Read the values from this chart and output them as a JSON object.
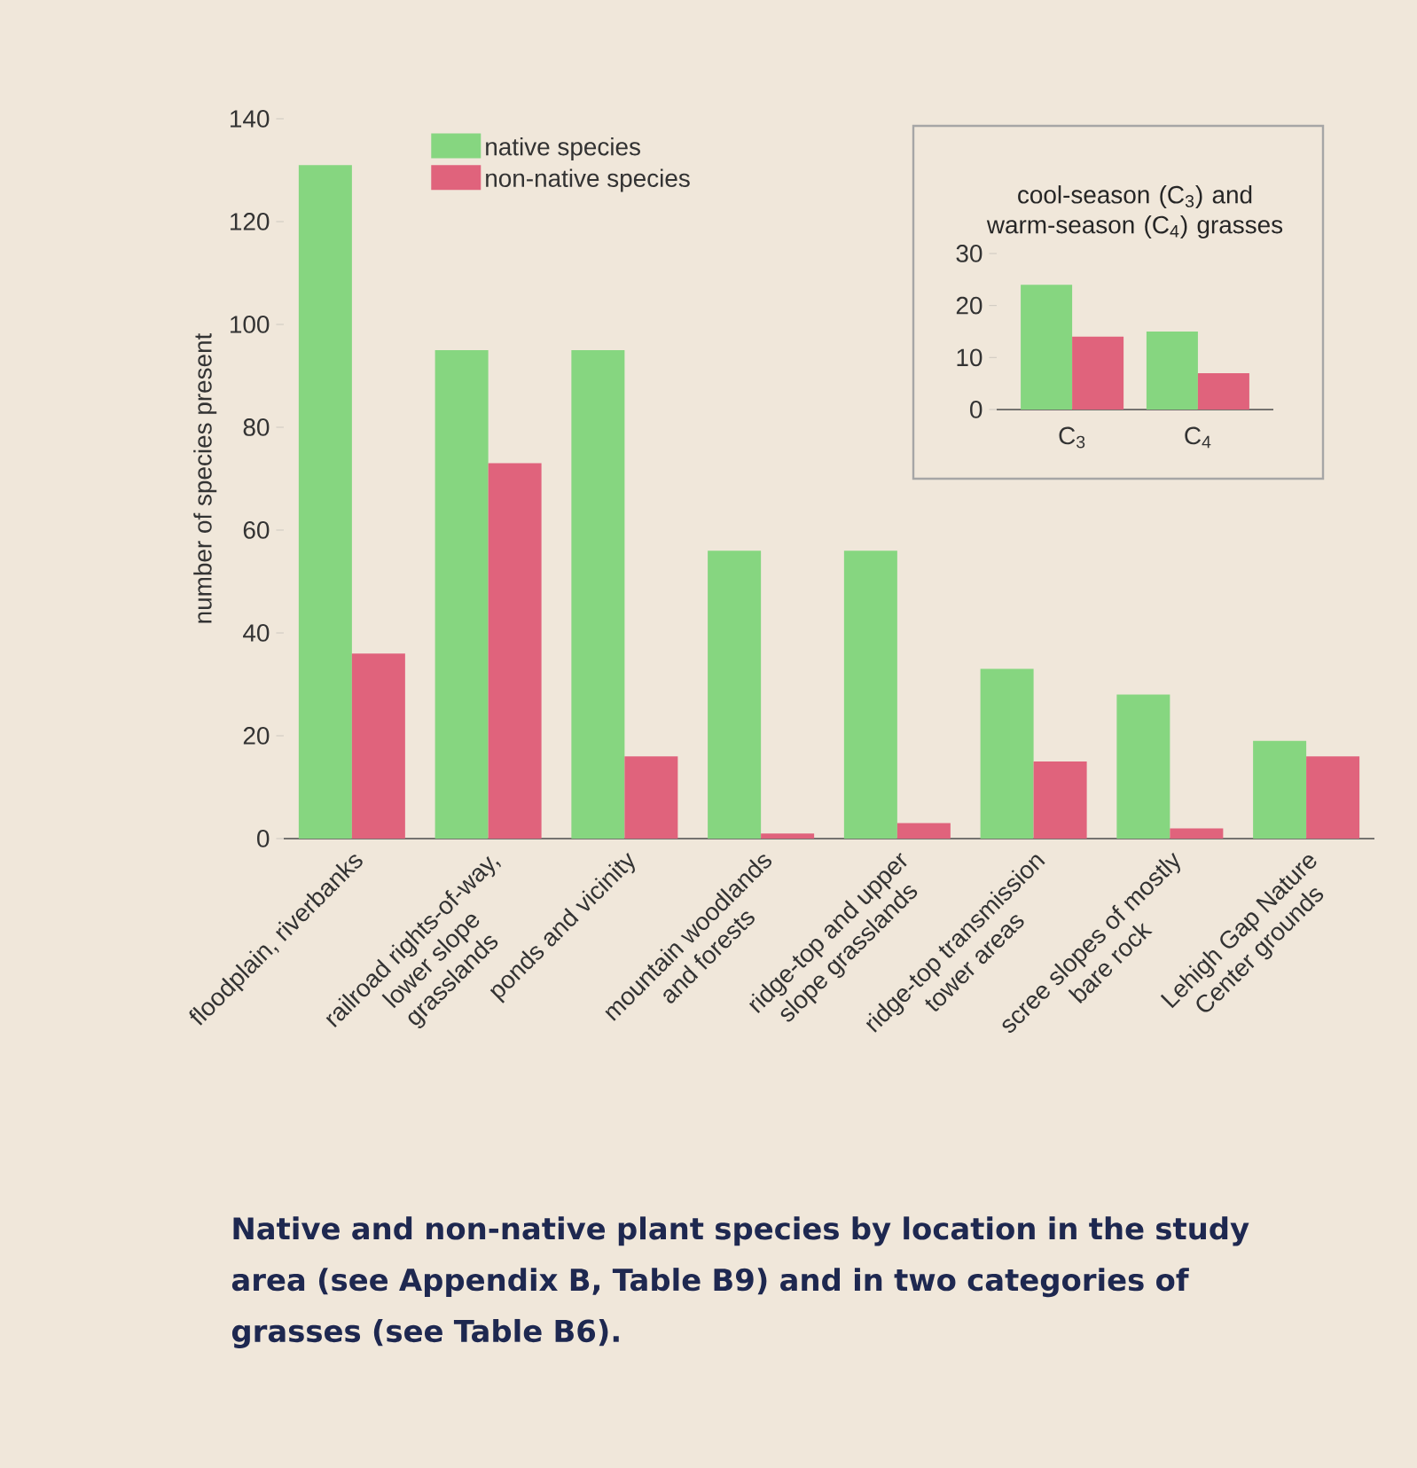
{
  "chart_data": [
    {
      "type": "bar",
      "ylabel": "number of species present",
      "categories": [
        "floodplain, riverbanks",
        "railroad rights-of-way, lower slope grasslands",
        "ponds and vicinity",
        "mountain woodlands and forests",
        "ridge-top and upper slope grasslands",
        "ridge-top transmission tower areas",
        "scree slopes of mostly bare rock",
        "Lehigh Gap Nature Center grounds"
      ],
      "series": [
        {
          "name": "native species",
          "color": "#86d680",
          "values": [
            131,
            95,
            95,
            56,
            56,
            33,
            28,
            19
          ]
        },
        {
          "name": "non-native species",
          "color": "#e0637c",
          "values": [
            36,
            73,
            16,
            1,
            3,
            15,
            2,
            16
          ]
        }
      ],
      "ylim": [
        0,
        140
      ],
      "yticks": [
        0,
        20,
        40,
        60,
        80,
        100,
        120,
        140
      ],
      "legend": "top left",
      "annotations": [
        "Native and non-native plant species by location in the study area (see Appendix B, Table B9) and in two categories of grasses (see Table B6)."
      ]
    },
    {
      "type": "bar",
      "title": "cool-season (C$_{3}$) and warm-season (C$_{4}$) grasses",
      "categories": [
        "C$_{3}$",
        "C$_{4}$"
      ],
      "series": [
        {
          "color": "#86d680",
          "values": [
            24,
            15
          ]
        },
        {
          "color": "#e0637c",
          "values": [
            14,
            7
          ]
        }
      ],
      "ylim": [
        0,
        30
      ],
      "yticks": [
        0,
        10,
        20,
        30
      ]
    }
  ]
}
